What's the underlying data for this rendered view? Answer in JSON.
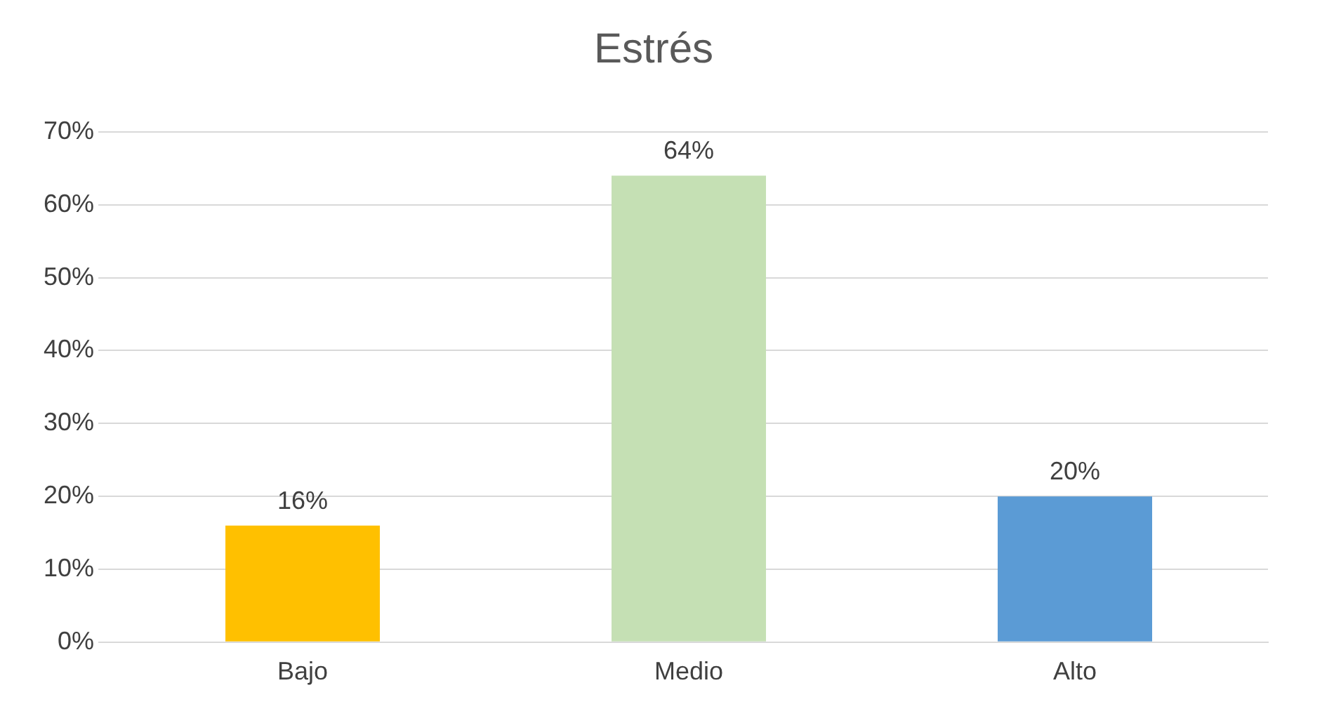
{
  "chart_data": {
    "type": "bar",
    "title": "Estrés",
    "categories": [
      "Bajo",
      "Medio",
      "Alto"
    ],
    "values": [
      16,
      64,
      20
    ],
    "colors": [
      "#ffc000",
      "#c5e0b4",
      "#5b9bd5"
    ],
    "value_labels": [
      "16%",
      "64%",
      "20%"
    ],
    "ylim": [
      0,
      70
    ],
    "yticks": [
      {
        "value": 0,
        "label": "0%"
      },
      {
        "value": 10,
        "label": "10%"
      },
      {
        "value": 20,
        "label": "20%"
      },
      {
        "value": 30,
        "label": "30%"
      },
      {
        "value": 40,
        "label": "40%"
      },
      {
        "value": 50,
        "label": "50%"
      },
      {
        "value": 60,
        "label": "60%"
      },
      {
        "value": 70,
        "label": "70%"
      }
    ],
    "grid": "y",
    "legend": false
  }
}
